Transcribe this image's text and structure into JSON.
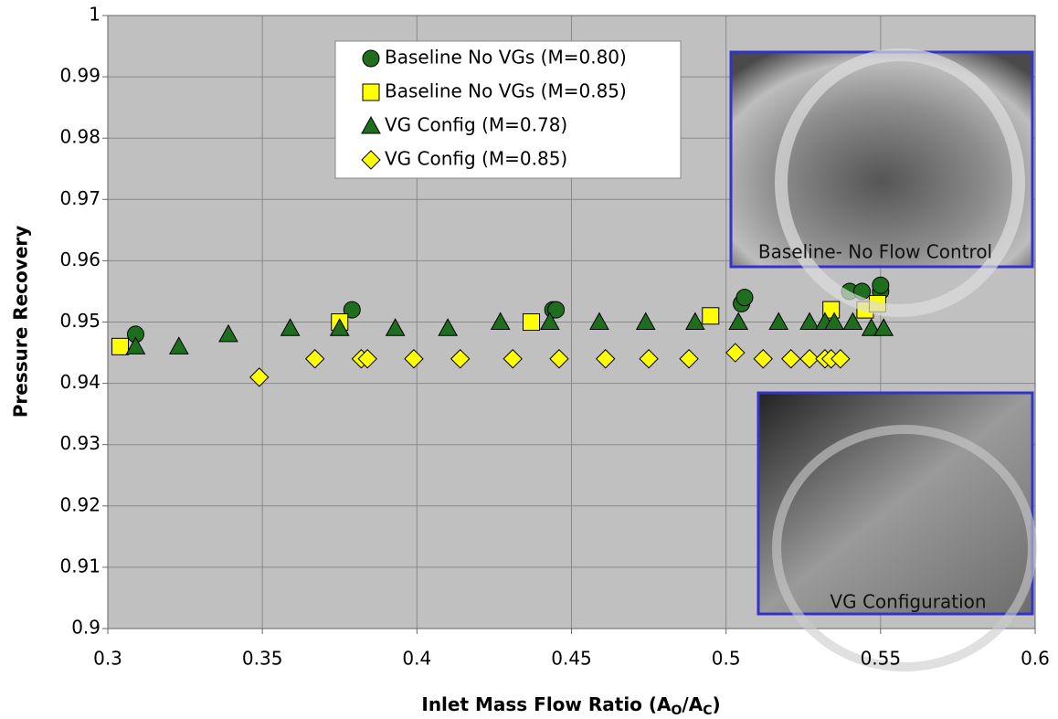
{
  "chart_data": {
    "type": "scatter",
    "x_label": [
      "Inlet Mass Flow Ratio (A",
      "O",
      "/A",
      "C",
      ")"
    ],
    "y_label": "Pressure Recovery",
    "xlim": [
      0.3,
      0.6
    ],
    "xticks": [
      0.3,
      0.35,
      0.4,
      0.45,
      0.5,
      0.55,
      0.6
    ],
    "ylim": [
      0.9,
      1
    ],
    "yticks": [
      0.9,
      0.91,
      0.92,
      0.93,
      0.94,
      0.95,
      0.96,
      0.97,
      0.98,
      0.99,
      1
    ],
    "grid": true,
    "series": [
      {
        "name": "Baseline No VGs (M=0.80)",
        "color": "#1f6e1f",
        "marker": "circle",
        "x": [
          0.309,
          0.379,
          0.444,
          0.445,
          0.505,
          0.506,
          0.54,
          0.544,
          0.55,
          0.55
        ],
        "values": [
          0.948,
          0.952,
          0.952,
          0.952,
          0.953,
          0.954,
          0.955,
          0.955,
          0.955,
          0.956
        ]
      },
      {
        "name": "Baseline No VGs (M=0.85)",
        "color": "#ffff00",
        "marker": "square",
        "x": [
          0.304,
          0.375,
          0.437,
          0.495,
          0.534,
          0.545,
          0.549
        ],
        "values": [
          0.946,
          0.95,
          0.95,
          0.951,
          0.952,
          0.952,
          0.953
        ]
      },
      {
        "name": "VG Config (M=0.78)",
        "color": "#1f6e1f",
        "marker": "triangle",
        "x": [
          0.309,
          0.323,
          0.339,
          0.359,
          0.375,
          0.393,
          0.41,
          0.427,
          0.443,
          0.459,
          0.474,
          0.49,
          0.504,
          0.517,
          0.527,
          0.532,
          0.535,
          0.541,
          0.547,
          0.551
        ],
        "values": [
          0.946,
          0.946,
          0.948,
          0.949,
          0.949,
          0.949,
          0.949,
          0.95,
          0.95,
          0.95,
          0.95,
          0.95,
          0.95,
          0.95,
          0.95,
          0.95,
          0.95,
          0.95,
          0.949,
          0.949
        ]
      },
      {
        "name": "VG Config (M=0.85)",
        "color": "#ffff00",
        "marker": "diamond",
        "x": [
          0.349,
          0.367,
          0.382,
          0.384,
          0.399,
          0.414,
          0.431,
          0.446,
          0.461,
          0.475,
          0.488,
          0.503,
          0.512,
          0.521,
          0.527,
          0.532,
          0.534,
          0.537
        ],
        "values": [
          0.941,
          0.944,
          0.944,
          0.944,
          0.944,
          0.944,
          0.944,
          0.944,
          0.944,
          0.944,
          0.944,
          0.945,
          0.944,
          0.944,
          0.944,
          0.944,
          0.944,
          0.944
        ]
      }
    ],
    "insets": [
      {
        "caption": "Baseline- No Flow Control"
      },
      {
        "caption": "VG Configuration"
      }
    ]
  }
}
